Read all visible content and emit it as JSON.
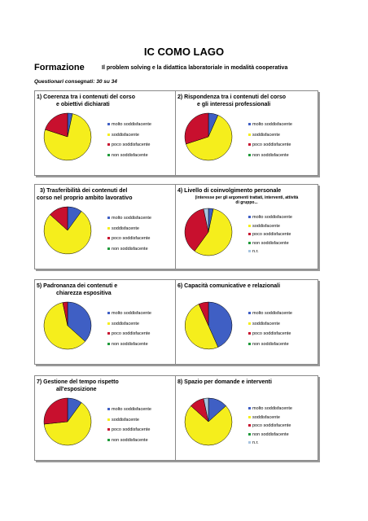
{
  "header": {
    "title": "IC COMO LAGO",
    "section": "Formazione",
    "subtitle": "Il problem solving e la didattica laboratoriale in modalità cooperativa",
    "questionari": "Questionari consegnati: 30 su 34"
  },
  "colors": {
    "molto soddisfacente": "#3f5fc4",
    "soddisfacente": "#f5ee1c",
    "poco soddisfacente": "#c8102e",
    "non soddisfacente": "#1f9a3a",
    "n.r.": "#a8c4e0"
  },
  "chart_data": [
    {
      "type": "pie",
      "title_lines": [
        "1) Coerenza tra i contenuti del corso",
        "e obiettivi dichiarati"
      ],
      "categories": [
        "molto soddisfacente",
        "soddisfacente",
        "poco soddisfacente",
        "non soddisfacente"
      ],
      "values": [
        1,
        23,
        6,
        0
      ]
    },
    {
      "type": "pie",
      "title_lines": [
        "2) Rispondenza tra i contenuti del corso",
        "e gli interessi professionali"
      ],
      "categories": [
        "molto soddisfacente",
        "soddisfacente",
        "poco soddisfacente",
        "non soddisfacente"
      ],
      "values": [
        2,
        19,
        9,
        0
      ]
    },
    {
      "type": "pie",
      "title_lines": [
        "3) Trasferibilità dei contenuti del",
        "corso nel proprio ambito lavorativo"
      ],
      "categories": [
        "molto soddisfacente",
        "soddisfacente",
        "poco soddisfacente",
        "non soddisfacente"
      ],
      "values": [
        3,
        23,
        4,
        0
      ]
    },
    {
      "type": "pie",
      "title_lines": [
        "4) Livello di coinvolgimento personale",
        "(interesse per gli argomenti trattati, interventi, attività",
        "di gruppo..."
      ],
      "categories": [
        "molto soddisfacente",
        "soddisfacente",
        "poco soddisfacente",
        "non soddisfacente",
        "n.r."
      ],
      "values": [
        1,
        17,
        11,
        0,
        1
      ]
    },
    {
      "type": "pie",
      "title_lines": [
        "5) Padronanza dei contenuti e",
        "chiarezza espositiva"
      ],
      "categories": [
        "molto soddisfacente",
        "soddisfacente",
        "poco soddisfacente",
        "non soddisfacente"
      ],
      "values": [
        11,
        18,
        1,
        0
      ]
    },
    {
      "type": "pie",
      "title_lines": [
        "6) Capacità comunicative e relazionali"
      ],
      "categories": [
        "molto soddisfacente",
        "soddisfacente",
        "poco soddisfacente",
        "non soddisfacente"
      ],
      "values": [
        13,
        15,
        2,
        0
      ]
    },
    {
      "type": "pie",
      "title_lines": [
        "7) Gestione del tempo rispetto",
        "all'esposizione"
      ],
      "categories": [
        "molto soddisfacente",
        "soddisfacente",
        "poco soddisfacente",
        "non soddisfacente"
      ],
      "values": [
        3,
        19,
        8,
        0
      ]
    },
    {
      "type": "pie",
      "title_lines": [
        "8) Spazio per domande e interventi"
      ],
      "categories": [
        "molto soddisfacente",
        "soddisfacente",
        "poco soddisfacente",
        "non soddisfacente",
        "n.r."
      ],
      "values": [
        4,
        22,
        3,
        0,
        1
      ]
    }
  ]
}
